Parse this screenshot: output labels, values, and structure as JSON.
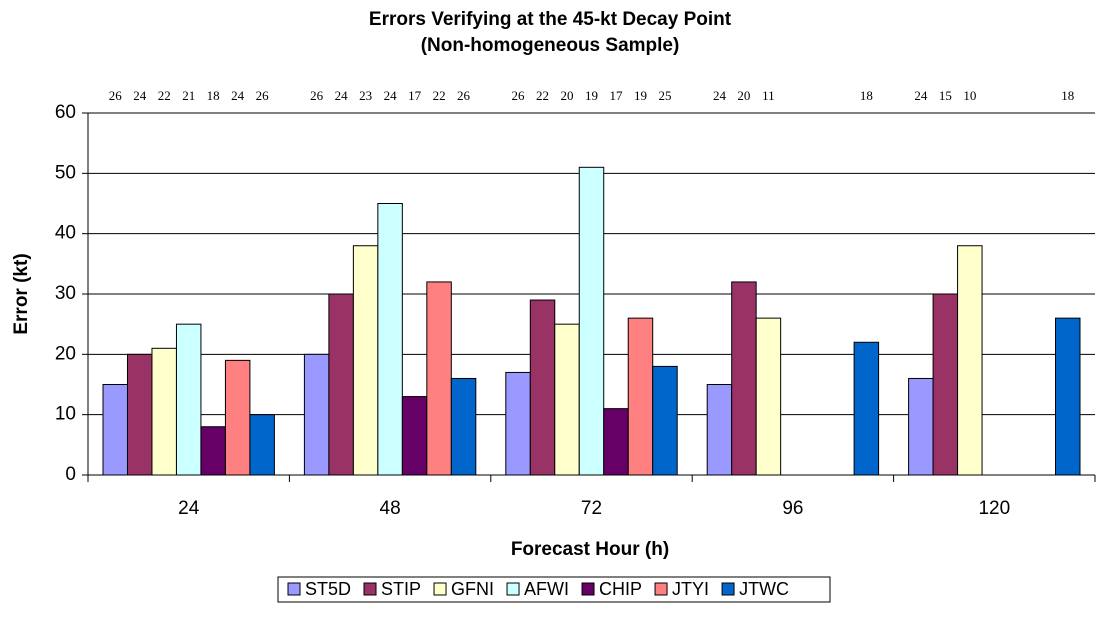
{
  "chart_data": {
    "type": "bar",
    "title": "Errors Verifying at the 45-kt Decay Point",
    "subtitle": "(Non-homogeneous Sample)",
    "x_label": "Forecast Hour (h)",
    "y_label": "Error (kt)",
    "categories": [
      "24",
      "48",
      "72",
      "96",
      "120"
    ],
    "series": [
      {
        "name": "ST5D",
        "color": "#9999ff",
        "values": [
          15,
          20,
          17,
          15,
          16
        ],
        "sample_sizes": [
          26,
          26,
          26,
          24,
          24
        ]
      },
      {
        "name": "STIP",
        "color": "#993366",
        "values": [
          20,
          30,
          29,
          32,
          30
        ],
        "sample_sizes": [
          24,
          24,
          22,
          20,
          15
        ]
      },
      {
        "name": "GFNI",
        "color": "#ffffcc",
        "values": [
          21,
          38,
          25,
          26,
          38
        ],
        "sample_sizes": [
          22,
          23,
          20,
          11,
          10
        ]
      },
      {
        "name": "AFWI",
        "color": "#ccffff",
        "values": [
          25,
          45,
          51,
          null,
          null
        ],
        "sample_sizes": [
          21,
          24,
          19,
          null,
          null
        ]
      },
      {
        "name": "CHIP",
        "color": "#660066",
        "values": [
          8,
          13,
          11,
          null,
          null
        ],
        "sample_sizes": [
          18,
          17,
          17,
          null,
          null
        ]
      },
      {
        "name": "JTYI",
        "color": "#ff8080",
        "values": [
          19,
          32,
          26,
          null,
          null
        ],
        "sample_sizes": [
          24,
          22,
          19,
          null,
          null
        ]
      },
      {
        "name": "JTWC",
        "color": "#0066cc",
        "values": [
          10,
          16,
          18,
          22,
          26
        ],
        "sample_sizes": [
          26,
          26,
          25,
          18,
          18
        ]
      }
    ],
    "ylim": [
      0,
      60
    ],
    "yticks": [
      0,
      10,
      20,
      30,
      40,
      50,
      60
    ],
    "grid": true
  }
}
